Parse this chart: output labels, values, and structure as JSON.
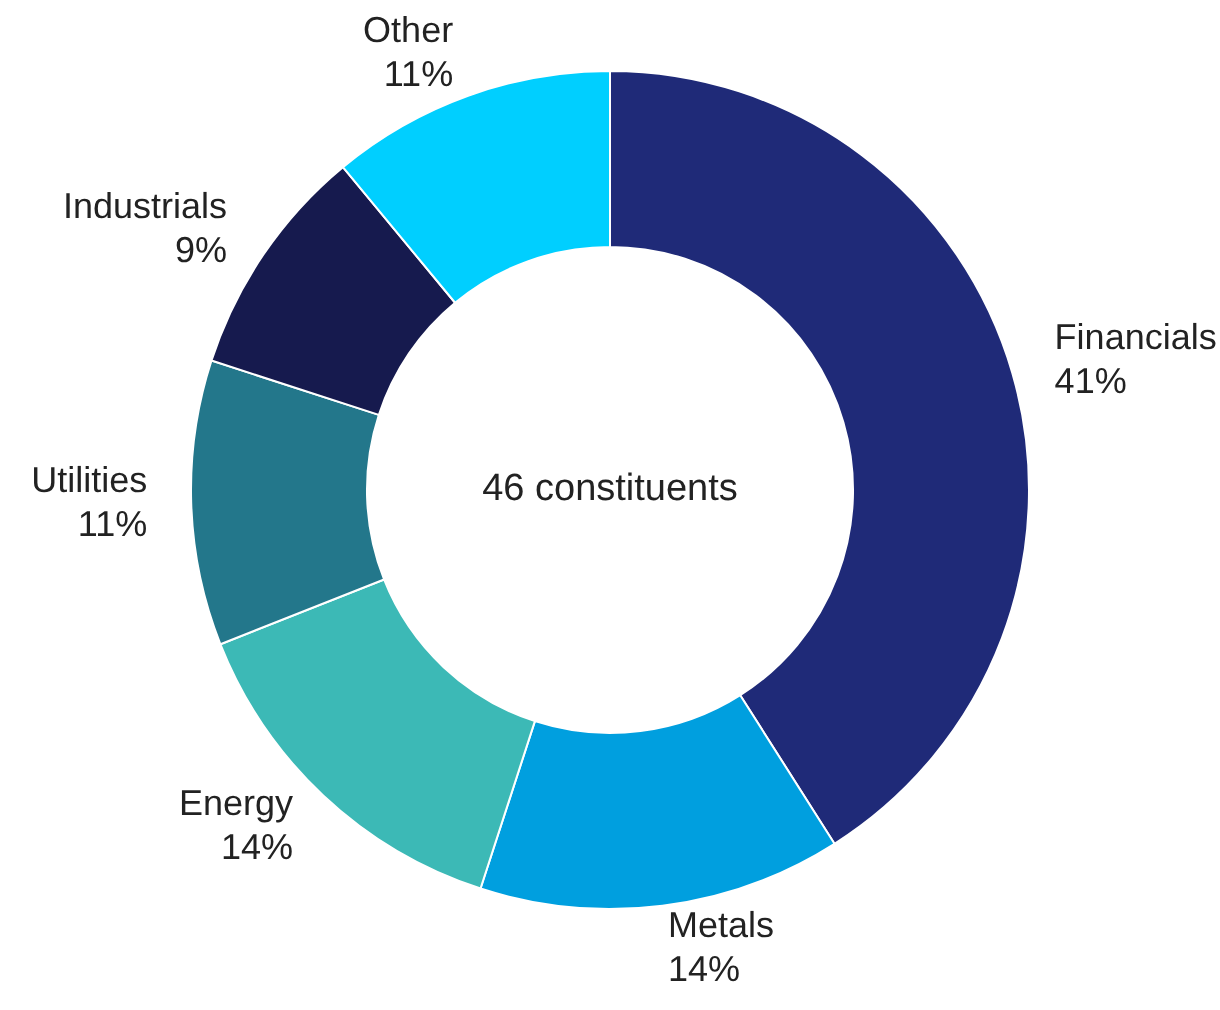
{
  "chart_data": {
    "type": "donut",
    "categories": [
      "Financials",
      "Metals",
      "Energy",
      "Utilities",
      "Industrials",
      "Other"
    ],
    "values": [
      41,
      14,
      14,
      11,
      9,
      11
    ],
    "value_labels": [
      "41%",
      "14%",
      "14%",
      "11%",
      "9%",
      "11%"
    ],
    "colors": [
      "#1f2a78",
      "#009fdf",
      "#3cb9b6",
      "#23778b",
      "#161a4e",
      "#00cfff"
    ],
    "annotations": [
      "46 constituents"
    ],
    "legend": false
  }
}
